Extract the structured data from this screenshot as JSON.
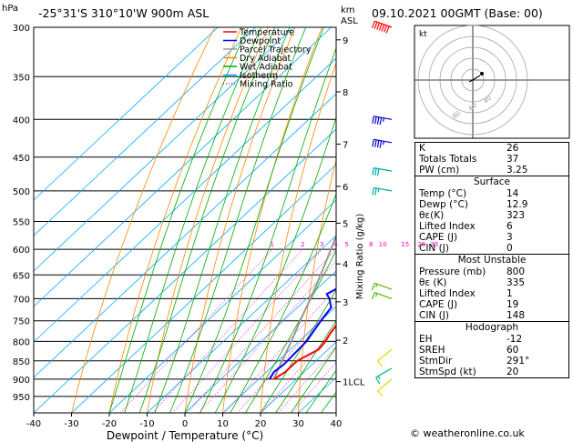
{
  "header": {
    "left": "hPa",
    "station": "-25°31'S  310°10'W  900m  ASL",
    "km": "km",
    "asl": "ASL",
    "datetime": "09.10.2021  00GMT  (Base: 00)"
  },
  "chart_data": {
    "type": "skewt",
    "xlabel": "Dewpoint / Temperature (°C)",
    "ylabel": "",
    "x_ticks": [
      -40,
      -30,
      -20,
      -10,
      0,
      10,
      20,
      30,
      40
    ],
    "pressure_levels": [
      300,
      350,
      400,
      450,
      500,
      550,
      600,
      650,
      700,
      750,
      800,
      850,
      900,
      950
    ],
    "km_ticks": [
      {
        "label": "9",
        "p": 312
      },
      {
        "label": "8",
        "p": 367
      },
      {
        "label": "7",
        "p": 432
      },
      {
        "label": "6",
        "p": 493
      },
      {
        "label": "5",
        "p": 553
      },
      {
        "label": "4",
        "p": 628
      },
      {
        "label": "3",
        "p": 707
      },
      {
        "label": "2",
        "p": 797
      },
      {
        "label": "1LCL",
        "p": 907
      }
    ],
    "mixing_ratio_label": "Mixing Ratio (g/kg)",
    "mixing_ratio_values": [
      "1",
      "2",
      "3",
      "4",
      "5",
      "8",
      "10",
      "15",
      "20",
      "25"
    ],
    "legend": [
      "Temperature",
      "Dewpoint",
      "Parcel Trajectory",
      "Dry Adiabat",
      "Wet Adiabat",
      "Isotherm",
      "Mixing Ratio"
    ],
    "temperature": [
      [
        900,
        14
      ],
      [
        880,
        15
      ],
      [
        850,
        15
      ],
      [
        820,
        17.5
      ],
      [
        800,
        17
      ],
      [
        780,
        16
      ],
      [
        750,
        15
      ],
      [
        720,
        16
      ],
      [
        700,
        16
      ],
      [
        680,
        15
      ],
      [
        650,
        13
      ],
      [
        620,
        10
      ],
      [
        600,
        8
      ],
      [
        550,
        3
      ],
      [
        530,
        1
      ],
      [
        500,
        -3
      ],
      [
        450,
        -9
      ],
      [
        400,
        -16
      ],
      [
        380,
        -19
      ],
      [
        350,
        -24
      ],
      [
        320,
        -30
      ],
      [
        300,
        -33
      ]
    ],
    "dewpoint": [
      [
        900,
        12.9
      ],
      [
        880,
        12
      ],
      [
        860,
        12.5
      ],
      [
        800,
        12
      ],
      [
        750,
        10
      ],
      [
        720,
        9
      ],
      [
        700,
        6
      ],
      [
        690,
        4
      ],
      [
        670,
        6
      ],
      [
        650,
        3
      ],
      [
        600,
        0
      ],
      [
        560,
        -5
      ],
      [
        545,
        -11
      ],
      [
        530,
        -15
      ],
      [
        500,
        -19
      ],
      [
        450,
        -21
      ],
      [
        400,
        -24
      ],
      [
        380,
        -24
      ],
      [
        350,
        -28
      ],
      [
        320,
        -39
      ],
      [
        300,
        -48
      ]
    ],
    "parcel": [
      [
        900,
        14
      ],
      [
        850,
        11
      ],
      [
        800,
        8
      ],
      [
        750,
        4.5
      ],
      [
        700,
        1
      ],
      [
        650,
        -3
      ],
      [
        600,
        -7.5
      ],
      [
        550,
        -12.5
      ],
      [
        500,
        -18
      ],
      [
        450,
        -24
      ],
      [
        400,
        -31
      ],
      [
        350,
        -39
      ],
      [
        300,
        -48
      ]
    ],
    "wind_barbs": [
      {
        "p": 300,
        "dir": 290,
        "spd": 70,
        "color": "#ff0000"
      },
      {
        "p": 400,
        "dir": 280,
        "spd": 45,
        "color": "#0000cc"
      },
      {
        "p": 430,
        "dir": 280,
        "spd": 45,
        "color": "#0000cc"
      },
      {
        "p": 470,
        "dir": 280,
        "spd": 30,
        "color": "#00aaaa"
      },
      {
        "p": 500,
        "dir": 280,
        "spd": 25,
        "color": "#00aaaa"
      },
      {
        "p": 680,
        "dir": 290,
        "spd": 15,
        "color": "#55bb00"
      },
      {
        "p": 700,
        "dir": 290,
        "spd": 15,
        "color": "#55bb00"
      },
      {
        "p": 820,
        "dir": 230,
        "spd": 10,
        "color": "#dddd00"
      },
      {
        "p": 870,
        "dir": 240,
        "spd": 15,
        "color": "#00bb88"
      },
      {
        "p": 900,
        "dir": 230,
        "spd": 10,
        "color": "#dddd00"
      }
    ]
  },
  "hodograph": {
    "unit": "kt",
    "ring_labels": [
      "40",
      "60",
      "80",
      "120"
    ]
  },
  "indices": [
    {
      "label": "K",
      "value": "26"
    },
    {
      "label": "Totals Totals",
      "value": "37"
    },
    {
      "label": "PW (cm)",
      "value": "3.25"
    }
  ],
  "surface": {
    "title": "Surface",
    "rows": [
      {
        "label": "Temp (°C)",
        "value": "14"
      },
      {
        "label": "Dewp (°C)",
        "value": "12.9"
      },
      {
        "label": "θε(K)",
        "value": "323"
      },
      {
        "label": "Lifted Index",
        "value": "6"
      },
      {
        "label": "CAPE (J)",
        "value": "3"
      },
      {
        "label": "CIN (J)",
        "value": "0"
      }
    ]
  },
  "most_unstable": {
    "title": "Most Unstable",
    "rows": [
      {
        "label": "Pressure (mb)",
        "value": "800"
      },
      {
        "label": "θε (K)",
        "value": "335"
      },
      {
        "label": "Lifted Index",
        "value": "1"
      },
      {
        "label": "CAPE (J)",
        "value": "19"
      },
      {
        "label": "CIN (J)",
        "value": "148"
      }
    ]
  },
  "hodograph_table": {
    "title": "Hodograph",
    "rows": [
      {
        "label": "EH",
        "value": "-12"
      },
      {
        "label": "SREH",
        "value": "60"
      },
      {
        "label": "StmDir",
        "value": "291°"
      },
      {
        "label": "StmSpd (kt)",
        "value": "20"
      }
    ]
  },
  "footer": "© weatheronline.co.uk",
  "colors": {
    "temperature": "#ff0000",
    "dewpoint": "#0000ff",
    "parcel": "#999999",
    "dry_adiabat": "#ff8800",
    "wet_adiabat": "#00aa00",
    "isotherm": "#00aaff",
    "mixing_ratio": "#ff00cc"
  }
}
